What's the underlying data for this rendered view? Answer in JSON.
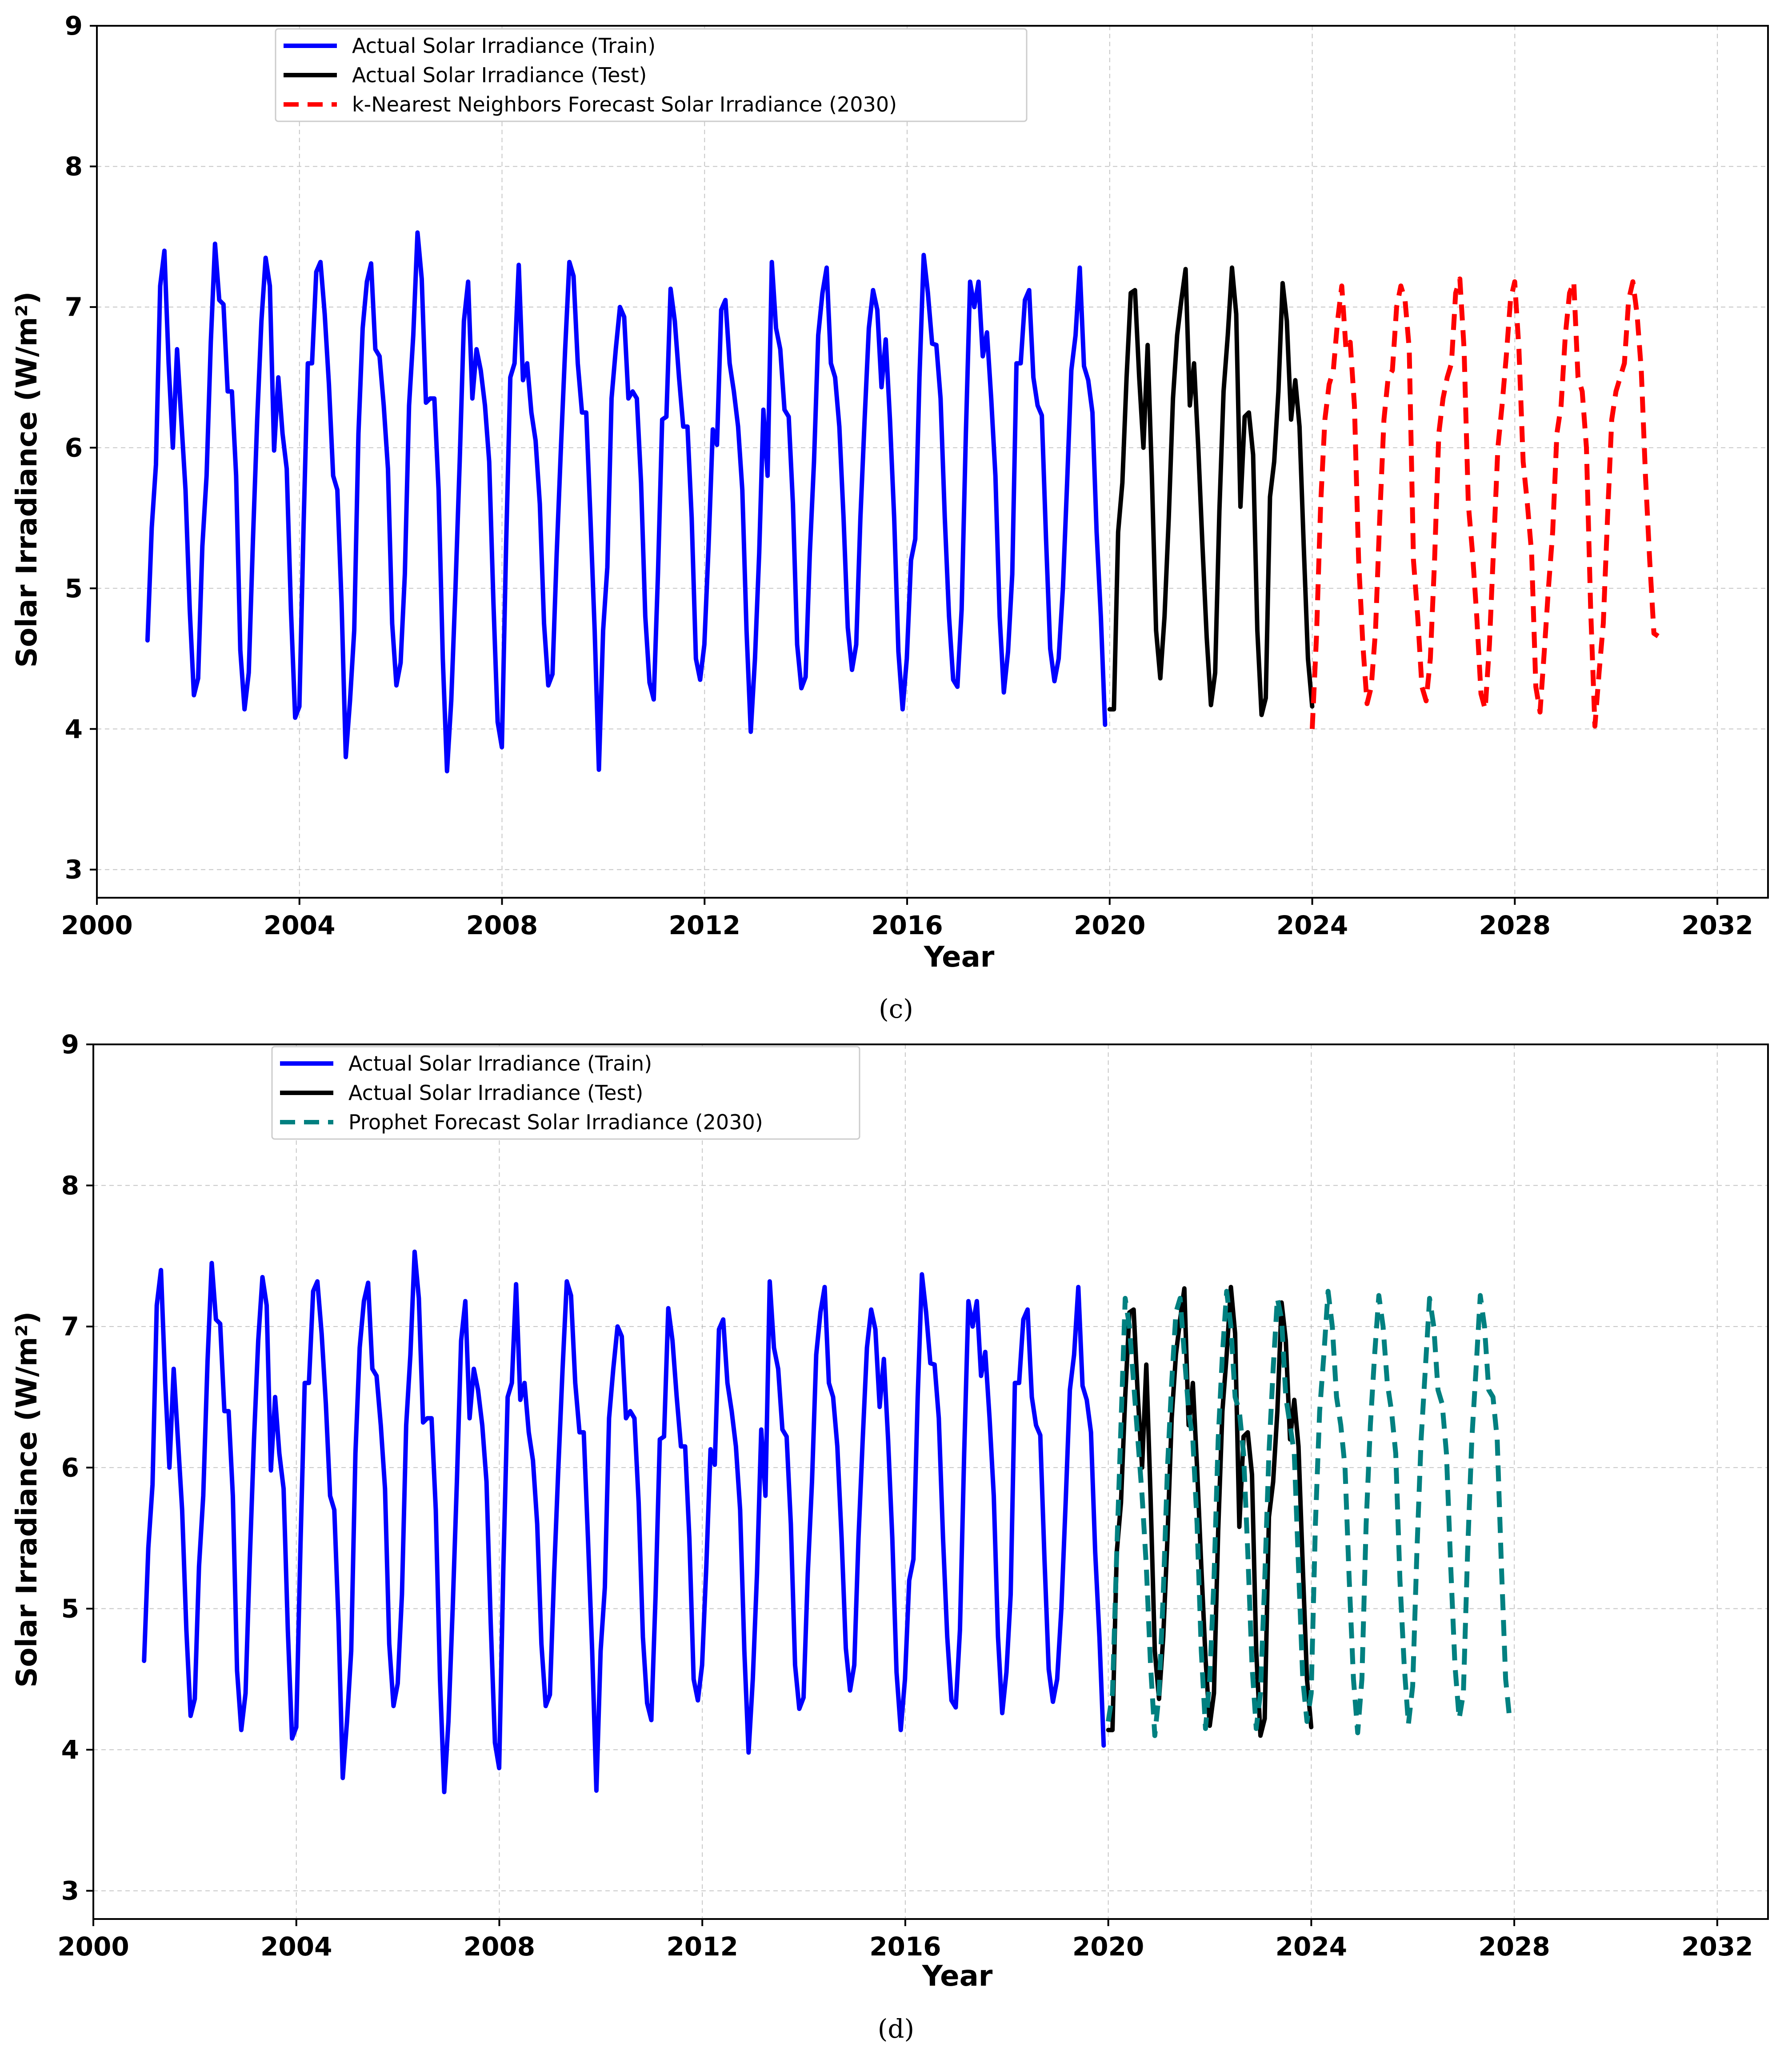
{
  "chart_data": [
    {
      "type": "line",
      "caption": "(c)",
      "xlabel": "Year",
      "ylabel": "Solar Irradiance (W/m²)",
      "xlim": [
        2000,
        2033
      ],
      "ylim": [
        2.8,
        9
      ],
      "xticks": [
        2000,
        2004,
        2008,
        2012,
        2016,
        2020,
        2024,
        2028,
        2032
      ],
      "yticks": [
        3,
        4,
        5,
        6,
        7,
        8,
        9
      ],
      "grid": true,
      "legend_position": "upper-left",
      "series": [
        {
          "name": "Actual Solar Irradiance (Train)",
          "color": "#0000ff",
          "style": "solid",
          "x_start": 2001.0,
          "step": 0.0833,
          "values": [
            4.63,
            5.43,
            5.88,
            7.15,
            7.4,
            6.6,
            6.0,
            6.7,
            6.2,
            5.7,
            4.85,
            4.24,
            4.36,
            5.3,
            5.8,
            6.75,
            7.45,
            7.05,
            7.02,
            6.4,
            6.4,
            5.8,
            4.56,
            4.14,
            4.4,
            5.35,
            6.2,
            6.9,
            7.35,
            7.15,
            5.98,
            6.5,
            6.1,
            5.85,
            4.85,
            4.08,
            4.16,
            5.45,
            6.6,
            6.6,
            7.25,
            7.32,
            6.95,
            6.45,
            5.8,
            5.7,
            4.9,
            3.8,
            4.2,
            4.7,
            6.1,
            6.85,
            7.18,
            7.31,
            6.7,
            6.65,
            6.3,
            5.85,
            4.75,
            4.31,
            4.47,
            5.1,
            6.3,
            6.8,
            7.53,
            7.2,
            6.32,
            6.35,
            6.35,
            5.7,
            4.5,
            3.7,
            4.2,
            5.0,
            5.9,
            6.9,
            7.18,
            6.35,
            6.7,
            6.55,
            6.3,
            5.9,
            4.9,
            4.05,
            3.87,
            5.3,
            6.5,
            6.6,
            7.3,
            6.48,
            6.6,
            6.25,
            6.05,
            5.6,
            4.75,
            4.31,
            4.39,
            5.25,
            6.0,
            6.7,
            7.32,
            7.22,
            6.6,
            6.25,
            6.25,
            5.5,
            4.7,
            3.71,
            4.7,
            5.15,
            6.35,
            6.7,
            7.0,
            6.93,
            6.35,
            6.4,
            6.35,
            5.75,
            4.8,
            4.33,
            4.21,
            5.1,
            6.2,
            6.22,
            7.13,
            6.9,
            6.5,
            6.15,
            6.15,
            5.5,
            4.5,
            4.35,
            4.6,
            5.3,
            6.13,
            6.02,
            6.98,
            7.05,
            6.6,
            6.4,
            6.15,
            5.7,
            4.7,
            3.98,
            4.5,
            5.25,
            6.27,
            5.8,
            7.32,
            6.85,
            6.7,
            6.27,
            6.22,
            5.6,
            4.6,
            4.29,
            4.37,
            5.25,
            5.9,
            6.8,
            7.1,
            7.28,
            6.6,
            6.5,
            6.15,
            5.5,
            4.72,
            4.42,
            4.6,
            5.5,
            6.2,
            6.85,
            7.12,
            6.98,
            6.43,
            6.77,
            6.2,
            5.5,
            4.55,
            4.14,
            4.5,
            5.2,
            5.35,
            6.5,
            7.37,
            7.1,
            6.74,
            6.73,
            6.35,
            5.5,
            4.8,
            4.35,
            4.3,
            4.85,
            6.1,
            7.18,
            7.0,
            7.18,
            6.65,
            6.82,
            6.35,
            5.8,
            4.8,
            4.26,
            4.55,
            5.1,
            6.6,
            6.6,
            7.05,
            7.12,
            6.5,
            6.3,
            6.23,
            5.35,
            4.57,
            4.34,
            4.5,
            5.0,
            5.75,
            6.55,
            6.8,
            7.28,
            6.58,
            6.48,
            6.25,
            5.4,
            4.8,
            4.03
          ]
        },
        {
          "name": "Actual Solar Irradiance (Test)",
          "color": "#000000",
          "style": "solid",
          "x_start": 2020.0,
          "step": 0.0833,
          "values": [
            4.14,
            4.14,
            5.4,
            5.75,
            6.5,
            7.1,
            7.12,
            6.5,
            6.0,
            6.73,
            5.8,
            4.7,
            4.36,
            4.8,
            5.5,
            6.35,
            6.8,
            7.05,
            7.27,
            6.3,
            6.6,
            6.0,
            5.3,
            4.65,
            4.17,
            4.4,
            5.55,
            6.4,
            6.8,
            7.28,
            6.95,
            5.58,
            6.22,
            6.25,
            5.95,
            4.7,
            4.1,
            4.22,
            5.65,
            5.9,
            6.4,
            7.17,
            6.9,
            6.2,
            6.48,
            6.15,
            5.3,
            4.5,
            4.16
          ]
        },
        {
          "name": "k-Nearest Neighbors Forecast Solar Irradiance (2030)",
          "color": "#ff0000",
          "style": "dashed",
          "x_start": 2024.0,
          "step": 0.0833,
          "values": [
            4.0,
            4.65,
            5.6,
            6.2,
            6.45,
            6.55,
            6.9,
            7.15,
            6.7,
            6.75,
            6.3,
            5.2,
            4.6,
            4.18,
            4.3,
            4.7,
            5.5,
            6.2,
            6.5,
            6.55,
            7.0,
            7.15,
            7.05,
            6.7,
            5.2,
            4.8,
            4.3,
            4.2,
            4.5,
            5.2,
            6.1,
            6.35,
            6.5,
            6.6,
            7.1,
            7.2,
            6.7,
            5.6,
            5.25,
            4.8,
            4.25,
            4.14,
            4.6,
            5.3,
            6.0,
            6.3,
            6.65,
            7.05,
            7.18,
            6.7,
            5.9,
            5.6,
            5.25,
            4.3,
            4.12,
            4.55,
            5.0,
            5.4,
            6.1,
            6.3,
            6.8,
            7.1,
            7.18,
            6.5,
            6.4,
            6.0,
            4.85,
            4.02,
            4.4,
            4.75,
            5.5,
            6.2,
            6.4,
            6.5,
            6.6,
            7.05,
            7.18,
            6.95,
            6.55,
            5.8,
            5.2,
            4.68,
            4.66
          ]
        }
      ]
    },
    {
      "type": "line",
      "caption": "(d)",
      "xlabel": "Year",
      "ylabel": "Solar Irradiance (W/m²)",
      "xlim": [
        2000,
        2033
      ],
      "ylim": [
        2.8,
        9
      ],
      "xticks": [
        2000,
        2004,
        2008,
        2012,
        2016,
        2020,
        2024,
        2028,
        2032
      ],
      "yticks": [
        3,
        4,
        5,
        6,
        7,
        8,
        9
      ],
      "grid": true,
      "legend_position": "upper-left",
      "series": [
        {
          "name": "Actual Solar Irradiance (Train)",
          "color": "#0000ff",
          "style": "solid",
          "x_start": 2001.0,
          "step": 0.0833,
          "values": [
            4.63,
            5.43,
            5.88,
            7.15,
            7.4,
            6.6,
            6.0,
            6.7,
            6.2,
            5.7,
            4.85,
            4.24,
            4.36,
            5.3,
            5.8,
            6.75,
            7.45,
            7.05,
            7.02,
            6.4,
            6.4,
            5.8,
            4.56,
            4.14,
            4.4,
            5.35,
            6.2,
            6.9,
            7.35,
            7.15,
            5.98,
            6.5,
            6.1,
            5.85,
            4.85,
            4.08,
            4.16,
            5.45,
            6.6,
            6.6,
            7.25,
            7.32,
            6.95,
            6.45,
            5.8,
            5.7,
            4.9,
            3.8,
            4.2,
            4.7,
            6.1,
            6.85,
            7.18,
            7.31,
            6.7,
            6.65,
            6.3,
            5.85,
            4.75,
            4.31,
            4.47,
            5.1,
            6.3,
            6.8,
            7.53,
            7.2,
            6.32,
            6.35,
            6.35,
            5.7,
            4.5,
            3.7,
            4.2,
            5.0,
            5.9,
            6.9,
            7.18,
            6.35,
            6.7,
            6.55,
            6.3,
            5.9,
            4.9,
            4.05,
            3.87,
            5.3,
            6.5,
            6.6,
            7.3,
            6.48,
            6.6,
            6.25,
            6.05,
            5.6,
            4.75,
            4.31,
            4.39,
            5.25,
            6.0,
            6.7,
            7.32,
            7.22,
            6.6,
            6.25,
            6.25,
            5.5,
            4.7,
            3.71,
            4.7,
            5.15,
            6.35,
            6.7,
            7.0,
            6.93,
            6.35,
            6.4,
            6.35,
            5.75,
            4.8,
            4.33,
            4.21,
            5.1,
            6.2,
            6.22,
            7.13,
            6.9,
            6.5,
            6.15,
            6.15,
            5.5,
            4.5,
            4.35,
            4.6,
            5.3,
            6.13,
            6.02,
            6.98,
            7.05,
            6.6,
            6.4,
            6.15,
            5.7,
            4.7,
            3.98,
            4.5,
            5.25,
            6.27,
            5.8,
            7.32,
            6.85,
            6.7,
            6.27,
            6.22,
            5.6,
            4.6,
            4.29,
            4.37,
            5.25,
            5.9,
            6.8,
            7.1,
            7.28,
            6.6,
            6.5,
            6.15,
            5.5,
            4.72,
            4.42,
            4.6,
            5.5,
            6.2,
            6.85,
            7.12,
            6.98,
            6.43,
            6.77,
            6.2,
            5.5,
            4.55,
            4.14,
            4.5,
            5.2,
            5.35,
            6.5,
            7.37,
            7.1,
            6.74,
            6.73,
            6.35,
            5.5,
            4.8,
            4.35,
            4.3,
            4.85,
            6.1,
            7.18,
            7.0,
            7.18,
            6.65,
            6.82,
            6.35,
            5.8,
            4.8,
            4.26,
            4.55,
            5.1,
            6.6,
            6.6,
            7.05,
            7.12,
            6.5,
            6.3,
            6.23,
            5.35,
            4.57,
            4.34,
            4.5,
            5.0,
            5.75,
            6.55,
            6.8,
            7.28,
            6.58,
            6.48,
            6.25,
            5.4,
            4.8,
            4.03
          ]
        },
        {
          "name": "Actual Solar Irradiance (Test)",
          "color": "#000000",
          "style": "solid",
          "x_start": 2020.0,
          "step": 0.0833,
          "values": [
            4.14,
            4.14,
            5.4,
            5.75,
            6.5,
            7.1,
            7.12,
            6.5,
            6.0,
            6.73,
            5.8,
            4.7,
            4.36,
            4.8,
            5.5,
            6.35,
            6.8,
            7.05,
            7.27,
            6.3,
            6.6,
            6.0,
            5.3,
            4.65,
            4.17,
            4.4,
            5.55,
            6.4,
            6.8,
            7.28,
            6.95,
            5.58,
            6.22,
            6.25,
            5.95,
            4.7,
            4.1,
            4.22,
            5.65,
            5.9,
            6.4,
            7.17,
            6.9,
            6.2,
            6.48,
            6.15,
            5.3,
            4.5,
            4.16
          ]
        },
        {
          "name": "Prophet Forecast Solar Irradiance (2030)",
          "color": "#008080",
          "style": "dashed",
          "x_start": 2020.0,
          "step": 0.0833,
          "values": [
            4.2,
            4.4,
            5.4,
            6.3,
            7.2,
            7.0,
            6.6,
            6.2,
            5.8,
            5.3,
            4.6,
            4.1,
            4.4,
            5.1,
            6.0,
            6.6,
            7.1,
            7.2,
            6.8,
            6.4,
            6.2,
            5.6,
            4.7,
            4.15,
            4.5,
            5.2,
            6.2,
            6.8,
            7.25,
            7.0,
            6.5,
            6.4,
            6.1,
            5.4,
            4.6,
            4.15,
            4.4,
            5.2,
            6.1,
            6.7,
            7.2,
            7.05,
            6.5,
            6.3,
            6.1,
            5.3,
            4.5,
            4.2,
            4.4,
            5.6,
            6.4,
            6.8,
            7.25,
            7.0,
            6.5,
            6.3,
            6.0,
            5.2,
            4.5,
            4.12,
            4.5,
            5.6,
            6.3,
            6.8,
            7.22,
            7.0,
            6.6,
            6.4,
            6.1,
            5.2,
            4.6,
            4.18,
            4.45,
            5.4,
            6.2,
            6.7,
            7.2,
            7.0,
            6.55,
            6.45,
            6.1,
            5.3,
            4.6,
            4.22,
            4.4,
            5.4,
            6.2,
            6.7,
            7.22,
            7.0,
            6.55,
            6.5,
            6.2,
            5.3,
            4.5,
            4.2
          ]
        }
      ]
    }
  ]
}
